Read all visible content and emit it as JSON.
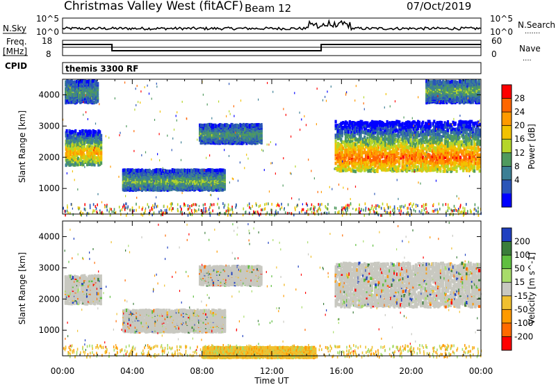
{
  "header": {
    "station": "Christmas Valley West (fitACF)",
    "beam": "Beam 12",
    "date": "07/Oct/2019"
  },
  "side_labels": {
    "nsky": "N.Sky",
    "freq_line1": "Freq.",
    "freq_line2": "[MHz]",
    "cpid": "CPID",
    "nsearch": "N.Search",
    "nave": "Nave",
    "nsearch_dots": "·······",
    "nave_dots": "····"
  },
  "noise_panel": {
    "left_ticks": [
      "10^5",
      "10^0"
    ],
    "right_ticks": [
      "10^5",
      "10^0"
    ]
  },
  "freq_panel": {
    "left_ticks": [
      "18",
      "8"
    ],
    "right_ticks": [
      "60",
      "0"
    ],
    "freq_steps": [
      {
        "start": "00:00",
        "end": "02:50",
        "level": "high"
      },
      {
        "start": "02:50",
        "end": "14:50",
        "level": "low"
      },
      {
        "start": "14:50",
        "end": "24:00",
        "level": "high"
      }
    ]
  },
  "cpid_panel": {
    "program": "themis 3300 RF"
  },
  "chart_data": [
    {
      "type": "heatmap",
      "name_param": "Power",
      "ylabel": "Slant Range [km]",
      "colorbar_label": "Power [dB]",
      "colorbar_ticks": [
        "28",
        "24",
        "20",
        "16",
        "12",
        "8",
        "4"
      ],
      "colorbar_colors": [
        "#ff0000",
        "#ff6600",
        "#ff9a00",
        "#f2c200",
        "#b5d62a",
        "#4f9a5e",
        "#3c7f95",
        "#2a55b8",
        "#0000ff"
      ],
      "yticks": [
        "4000",
        "3000",
        "2000",
        "1000"
      ],
      "ylim": [
        180,
        4500
      ],
      "xlim": [
        "00:00",
        "24:00"
      ],
      "xticks": [
        "00:00",
        "04:00",
        "08:00",
        "12:00",
        "16:00",
        "20:00",
        "00:00"
      ],
      "regions": [
        {
          "t0": 0.1,
          "t1": 2.2,
          "r0": 1800,
          "r1": 2900,
          "core": 2200,
          "value": 20
        },
        {
          "t0": 3.4,
          "t1": 9.3,
          "r0": 1000,
          "r1": 1650,
          "core": 1300,
          "value": 12
        },
        {
          "t0": 7.8,
          "t1": 11.4,
          "r0": 2500,
          "r1": 3100,
          "core": 2800,
          "value": 10
        },
        {
          "t0": 15.6,
          "t1": 23.9,
          "r0": 1600,
          "r1": 3200,
          "core": 2050,
          "value": 24
        },
        {
          "t0": 0.1,
          "t1": 2.0,
          "r0": 3800,
          "r1": 4500,
          "core": 4150,
          "value": 10
        },
        {
          "t0": 20.8,
          "t1": 23.9,
          "r0": 3800,
          "r1": 4500,
          "core": 4200,
          "value": 12
        }
      ]
    },
    {
      "type": "heatmap",
      "name_param": "Velocity",
      "ylabel": "Slant Range [km]",
      "colorbar_label": "Velocity [m s^-1]",
      "colorbar_ticks": [
        "200",
        "100",
        "50",
        "15",
        "-15",
        "-50",
        "-100",
        "-200"
      ],
      "colorbar_colors": [
        "#2040c0",
        "#3a7d3a",
        "#5fbf3f",
        "#a8dc6a",
        "#c8c8c0",
        "#f0c030",
        "#ff9a00",
        "#ff6a00",
        "#ff0000"
      ],
      "xlabel": "Time UT",
      "yticks": [
        "4000",
        "3000",
        "2000",
        "1000"
      ],
      "ylim": [
        180,
        4500
      ],
      "xlim": [
        "00:00",
        "24:00"
      ],
      "xticks": [
        "00:00",
        "04:00",
        "08:00",
        "12:00",
        "16:00",
        "20:00",
        "00:00"
      ],
      "regions": [
        {
          "t0": 0.1,
          "t1": 2.2,
          "r0": 1900,
          "r1": 2800,
          "value": 0
        },
        {
          "t0": 3.4,
          "t1": 9.3,
          "r0": 1000,
          "r1": 1700,
          "value": 0
        },
        {
          "t0": 7.8,
          "t1": 11.4,
          "r0": 2500,
          "r1": 3100,
          "value": 0
        },
        {
          "t0": 15.6,
          "t1": 23.9,
          "r0": 1800,
          "r1": 3200,
          "value": 0
        },
        {
          "t0": 8.0,
          "t1": 14.5,
          "r0": 180,
          "r1": 500,
          "value": -30
        }
      ]
    }
  ]
}
